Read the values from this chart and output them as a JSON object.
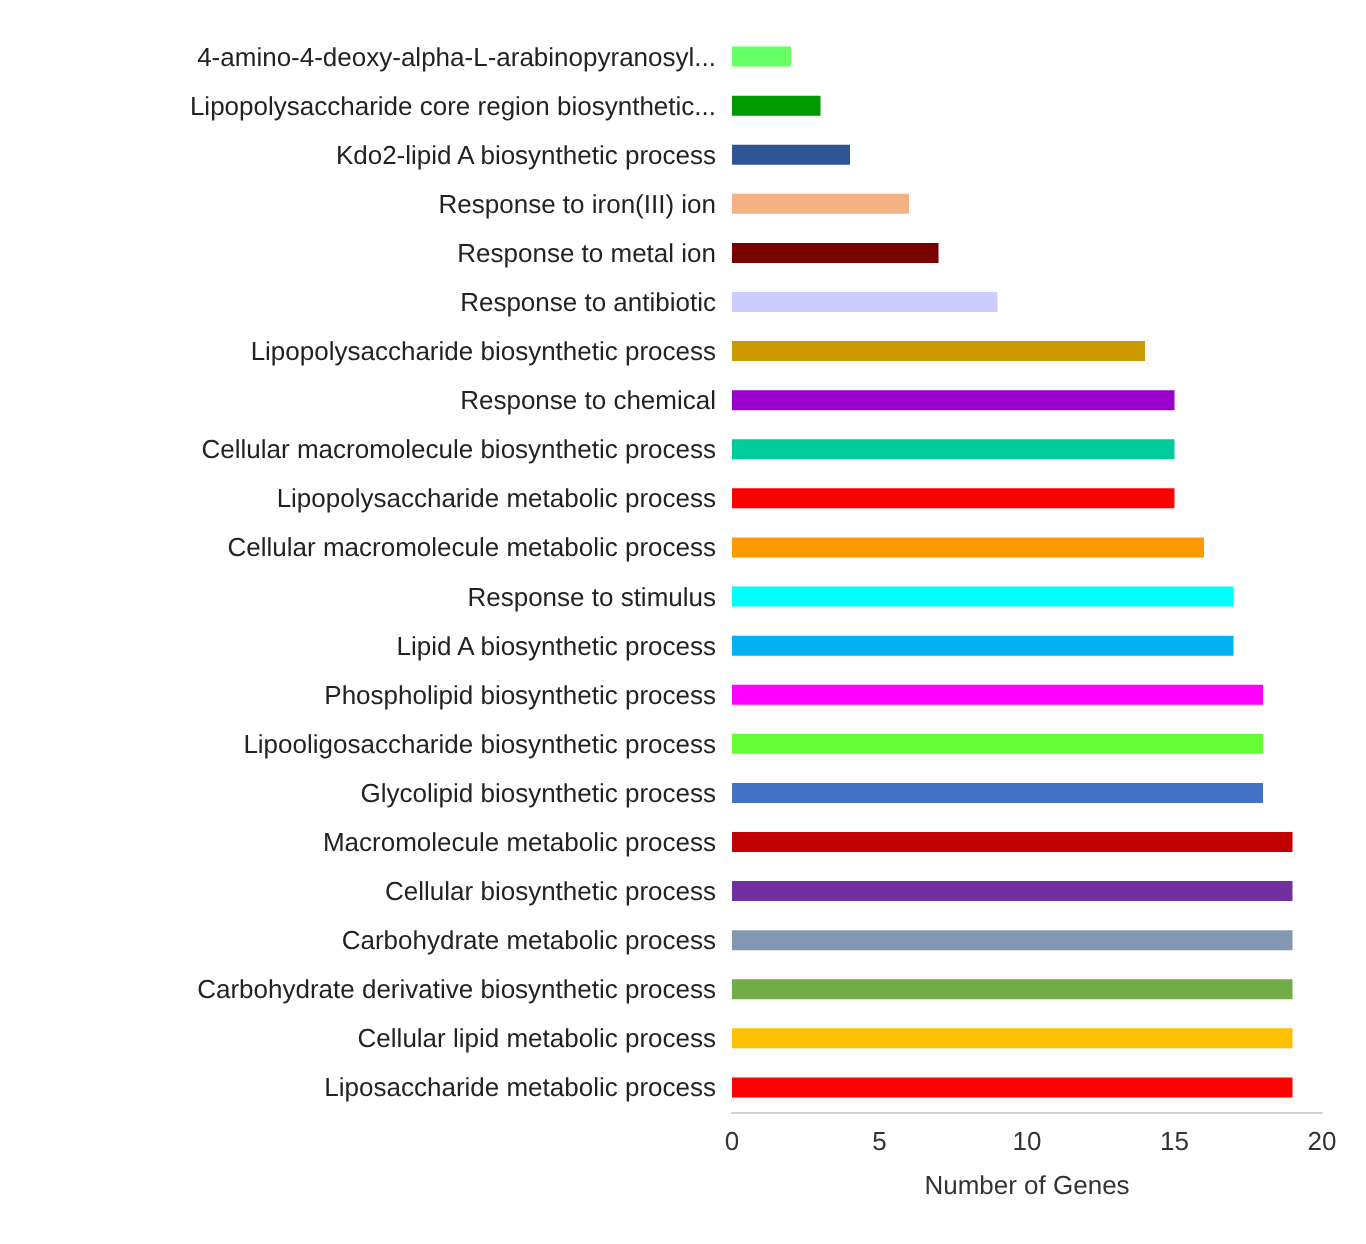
{
  "chart_data": {
    "type": "bar",
    "orientation": "horizontal",
    "xlabel": "Number of Genes",
    "categories": [
      "4-amino-4-deoxy-alpha-L-arabinopyranosyl...",
      "Lipopolysaccharide core region biosynthetic...",
      "Kdo2-lipid A biosynthetic process",
      "Response to iron(III) ion",
      "Response to metal ion",
      "Response to antibiotic",
      "Lipopolysaccharide biosynthetic process",
      "Response to chemical",
      "Cellular macromolecule biosynthetic process",
      "Lipopolysaccharide metabolic process",
      "Cellular macromolecule metabolic process",
      "Response to stimulus",
      "Lipid A biosynthetic process",
      "Phospholipid biosynthetic process",
      "Lipooligosaccharide biosynthetic process",
      "Glycolipid biosynthetic process",
      "Macromolecule metabolic process",
      "Cellular biosynthetic process",
      "Carbohydrate metabolic process",
      "Carbohydrate derivative biosynthetic process",
      "Cellular lipid metabolic process",
      "Liposaccharide metabolic process"
    ],
    "values": [
      2,
      3,
      4,
      6,
      7,
      9,
      14,
      15,
      15,
      15,
      16,
      17,
      17,
      18,
      18,
      18,
      19,
      19,
      19,
      19,
      19,
      19
    ],
    "colors": [
      "#66ff66",
      "#009900",
      "#2e5596",
      "#f4b183",
      "#7b0000",
      "#ccccff",
      "#cc9900",
      "#9900cc",
      "#00cc99",
      "#ff0000",
      "#ff9900",
      "#00ffff",
      "#00b0f0",
      "#ff00ff",
      "#66ff33",
      "#4472c4",
      "#c00000",
      "#7030a0",
      "#8497b0",
      "#70ad47",
      "#ffc000",
      "#ff0000"
    ],
    "xlim": [
      0,
      20
    ],
    "xticks": [
      0,
      5,
      10,
      15,
      20
    ],
    "grid": false
  }
}
